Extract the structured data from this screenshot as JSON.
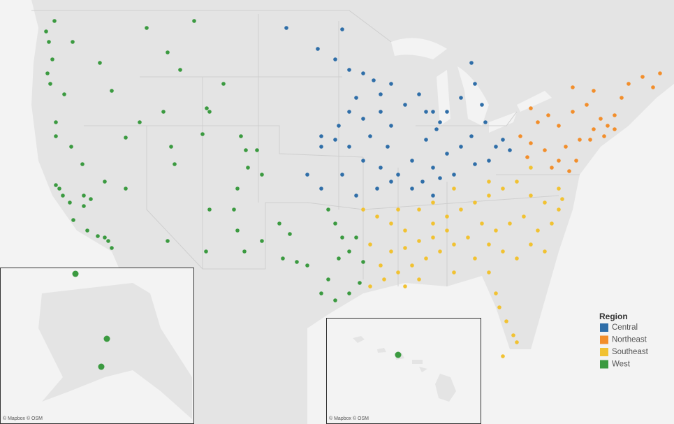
{
  "legend": {
    "title": "Region",
    "items": [
      {
        "name": "Central",
        "color": "#2f6ea8"
      },
      {
        "name": "Northeast",
        "color": "#f28e2b"
      },
      {
        "name": "Southeast",
        "color": "#f1c232"
      },
      {
        "name": "West",
        "color": "#3b9a40"
      }
    ]
  },
  "attributions": {
    "alaska": "© Mapbox © OSM",
    "hawaii": "© Mapbox © OSM"
  }
}
